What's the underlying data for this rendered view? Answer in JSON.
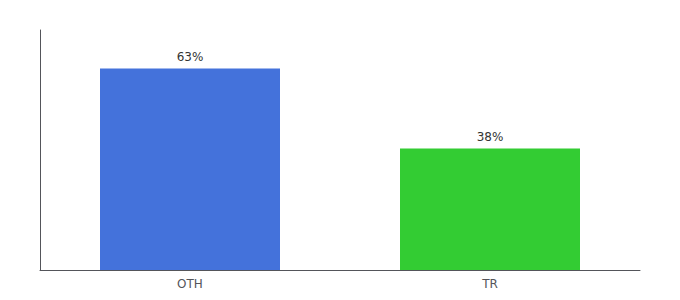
{
  "chart_data": {
    "type": "bar",
    "categories": [
      "OTH",
      "TR"
    ],
    "values": [
      63,
      38
    ],
    "value_labels": [
      "63%",
      "38%"
    ],
    "data_labels": true,
    "colors": [
      "#4472db",
      "#33cc33"
    ],
    "ylim": [
      0,
      75
    ],
    "tick_labels": "x",
    "grid": false
  }
}
